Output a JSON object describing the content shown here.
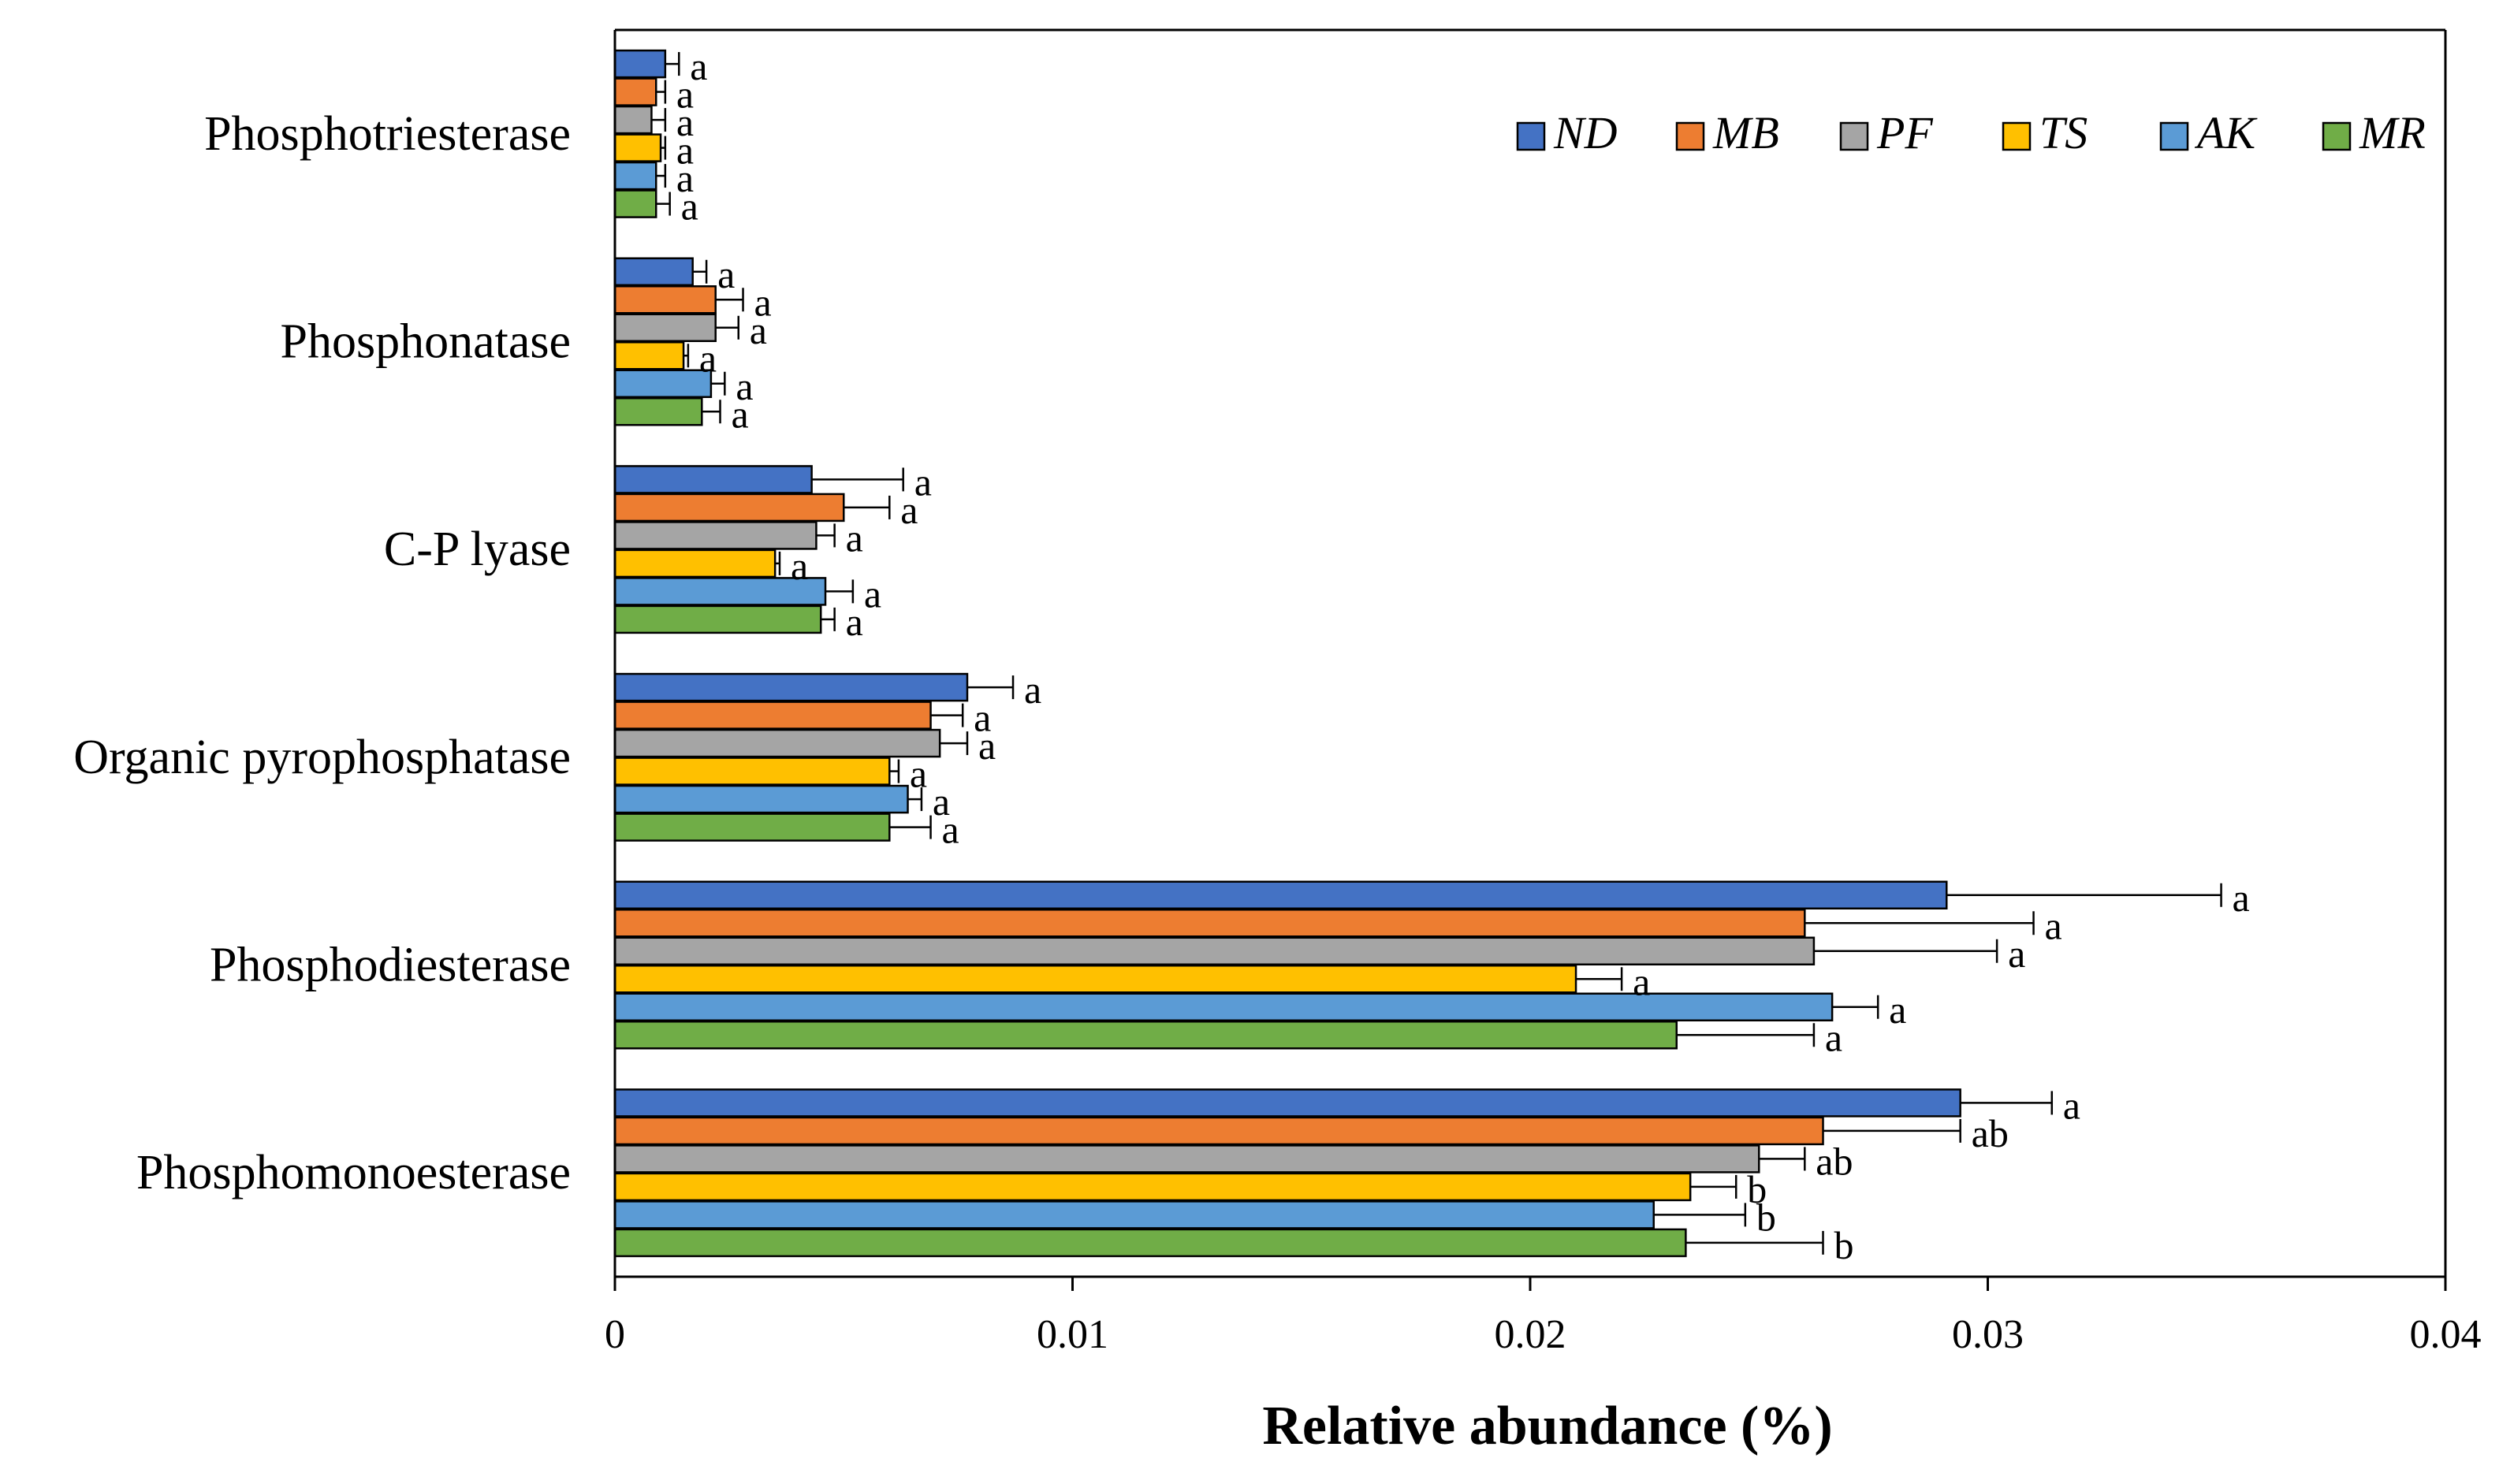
{
  "chart_data": {
    "type": "bar",
    "orientation": "horizontal",
    "xlabel": "Relative abundance (%)",
    "xlim": [
      0,
      0.04
    ],
    "xticks": [
      0,
      0.01,
      0.02,
      0.03,
      0.04
    ],
    "xtick_labels": [
      "0",
      "0.01",
      "0.02",
      "0.03",
      "0.04"
    ],
    "categories": [
      "Phosphotriesterase",
      "Phosphonatase",
      "C-P lyase",
      "Organic pyrophosphatase",
      "Phosphodiesterase",
      "Phosphomonoesterase"
    ],
    "series": [
      {
        "name": "ND",
        "color": "#4472C4",
        "values": [
          0.0011,
          0.0017,
          0.0043,
          0.0077,
          0.0291,
          0.0294
        ],
        "errors": [
          0.0003,
          0.0003,
          0.002,
          0.001,
          0.006,
          0.002
        ],
        "sig": [
          "a",
          "a",
          "a",
          "a",
          "a",
          "a"
        ]
      },
      {
        "name": "MB",
        "color": "#ED7D31",
        "values": [
          0.0009,
          0.0022,
          0.005,
          0.0069,
          0.026,
          0.0264
        ],
        "errors": [
          0.0002,
          0.0006,
          0.001,
          0.0007,
          0.005,
          0.003
        ],
        "sig": [
          "a",
          "a",
          "a",
          "a",
          "a",
          "ab"
        ]
      },
      {
        "name": "PF",
        "color": "#A5A5A5",
        "values": [
          0.0008,
          0.0022,
          0.0044,
          0.0071,
          0.0262,
          0.025
        ],
        "errors": [
          0.0003,
          0.0005,
          0.0004,
          0.0006,
          0.004,
          0.001
        ],
        "sig": [
          "a",
          "a",
          "a",
          "a",
          "a",
          "ab"
        ]
      },
      {
        "name": "TS",
        "color": "#FFC000",
        "values": [
          0.001,
          0.0015,
          0.0035,
          0.006,
          0.021,
          0.0235
        ],
        "errors": [
          0.0001,
          0.0001,
          0.0001,
          0.0002,
          0.001,
          0.001
        ],
        "sig": [
          "a",
          "a",
          "a",
          "a",
          "a",
          "b"
        ]
      },
      {
        "name": "AK",
        "color": "#5B9BD5",
        "values": [
          0.0009,
          0.0021,
          0.0046,
          0.0064,
          0.0266,
          0.0227
        ],
        "errors": [
          0.0002,
          0.0003,
          0.0006,
          0.0003,
          0.001,
          0.002
        ],
        "sig": [
          "a",
          "a",
          "a",
          "a",
          "a",
          "b"
        ]
      },
      {
        "name": "MR",
        "color": "#70AD47",
        "values": [
          0.0009,
          0.0019,
          0.0045,
          0.006,
          0.0232,
          0.0234
        ],
        "errors": [
          0.0003,
          0.0004,
          0.0003,
          0.0009,
          0.003,
          0.003
        ],
        "sig": [
          "a",
          "a",
          "a",
          "a",
          "a",
          "b"
        ]
      }
    ],
    "legend": {
      "position": "top-right",
      "entries": [
        "ND",
        "MB",
        "PF",
        "TS",
        "AK",
        "MR"
      ]
    },
    "grid": false
  }
}
